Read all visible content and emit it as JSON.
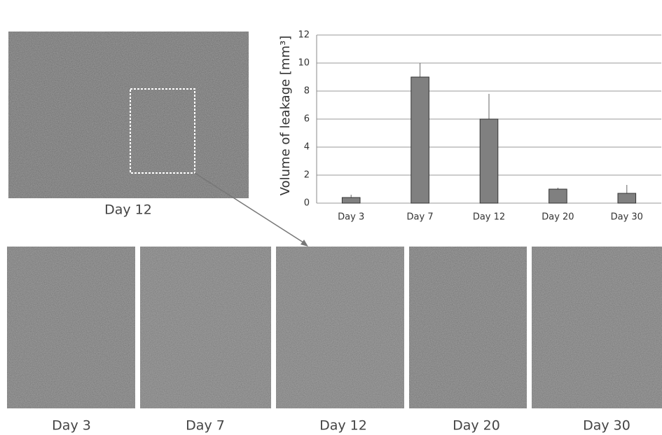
{
  "chart_data": {
    "type": "bar",
    "y_label": "Volume of leakage [mm³]",
    "categories": [
      "Day 3",
      "Day 7",
      "Day 12",
      "Day 20",
      "Day 30"
    ],
    "values": [
      0.4,
      9,
      6,
      1,
      0.7
    ],
    "errors": [
      0.2,
      1,
      1.8,
      0.1,
      0.6
    ],
    "color": "#808080",
    "ylim": [
      0,
      12
    ],
    "yticks": [
      0,
      2,
      4,
      6,
      8,
      10,
      12
    ],
    "grid": true
  },
  "images": {
    "overview_label": "Day 12",
    "panel_labels": [
      "Day 3",
      "Day 7",
      "Day 12",
      "Day 20",
      "Day 30"
    ]
  }
}
